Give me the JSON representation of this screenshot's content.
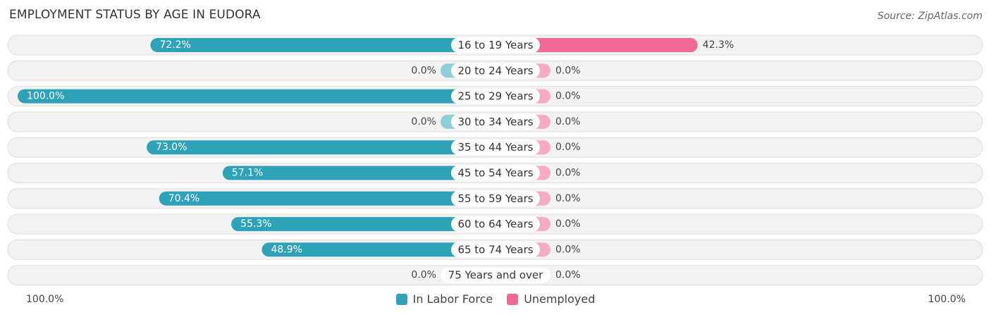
{
  "header": {
    "title": "EMPLOYMENT STATUS BY AGE IN EUDORA",
    "source": "Source: ZipAtlas.com"
  },
  "axis": {
    "left_label": "100.0%",
    "right_label": "100.0%"
  },
  "legend": {
    "labor_label": "In Labor Force",
    "unemployed_label": "Unemployed"
  },
  "colors": {
    "labor_strong": "#2ea3b8",
    "labor_light": "#8dcfd9",
    "unemployed_strong": "#f06895",
    "unemployed_light": "#f6aac3",
    "track": "#f2f2f2",
    "track_border": "#dddddd"
  },
  "chart_data": {
    "type": "bar",
    "orientation": "horizontal-diverging",
    "xlim": [
      -100,
      100
    ],
    "categories": [
      "16 to 19 Years",
      "20 to 24 Years",
      "25 to 29 Years",
      "30 to 34 Years",
      "35 to 44 Years",
      "45 to 54 Years",
      "55 to 59 Years",
      "60 to 64 Years",
      "65 to 74 Years",
      "75 Years and over"
    ],
    "series": [
      {
        "name": "In Labor Force",
        "values": [
          72.2,
          0.0,
          100.0,
          0.0,
          73.0,
          57.1,
          70.4,
          55.3,
          48.9,
          0.0
        ],
        "labels": [
          "72.2%",
          "0.0%",
          "100.0%",
          "0.0%",
          "73.0%",
          "57.1%",
          "70.4%",
          "55.3%",
          "48.9%",
          "0.0%"
        ]
      },
      {
        "name": "Unemployed",
        "values": [
          42.3,
          0.0,
          0.0,
          0.0,
          0.0,
          0.0,
          0.0,
          0.0,
          0.0,
          0.0
        ],
        "labels": [
          "42.3%",
          "0.0%",
          "0.0%",
          "0.0%",
          "0.0%",
          "0.0%",
          "0.0%",
          "0.0%",
          "0.0%",
          "0.0%"
        ]
      }
    ],
    "legend_position": "bottom-center"
  }
}
